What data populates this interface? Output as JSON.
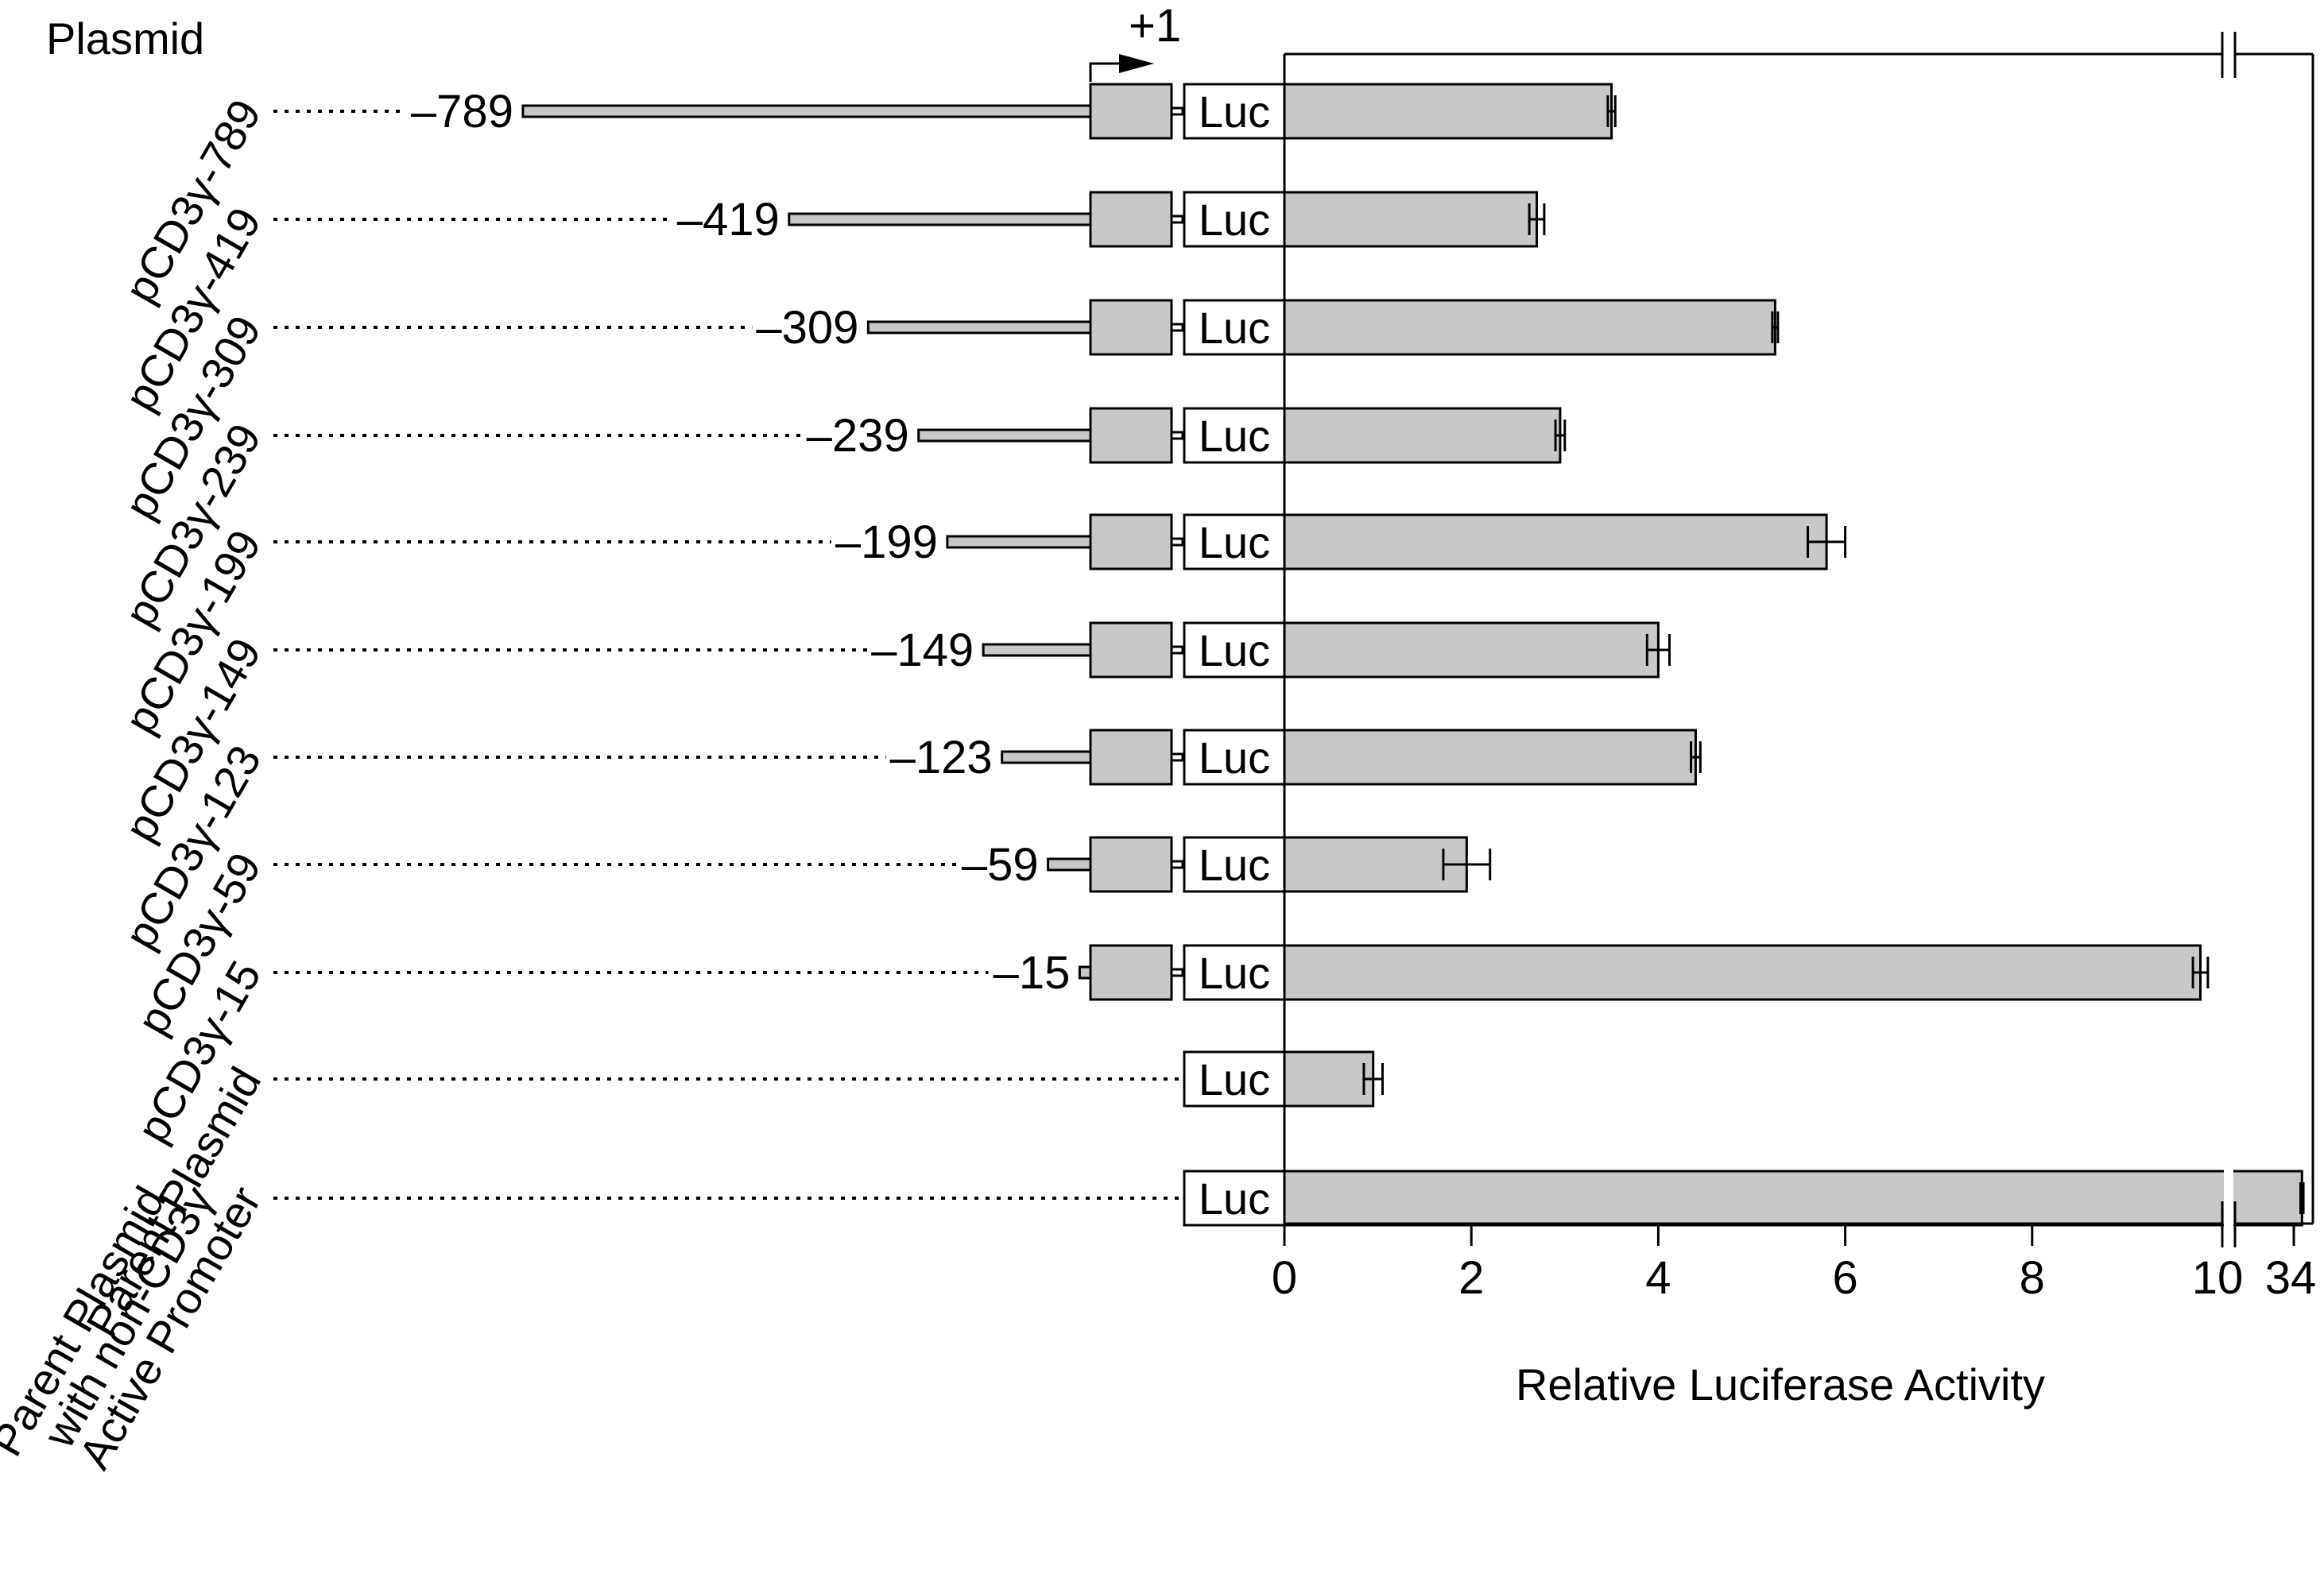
{
  "colors": {
    "bar_fill": "#c8c8c8",
    "stroke": "#000000",
    "background": "#ffffff"
  },
  "header": {
    "plasmid_label": "Plasmid",
    "tss_label": "+1"
  },
  "constructs": [
    {
      "name": "pCD3γ-789",
      "position_label": "–789",
      "start": -789
    },
    {
      "name": "pCD3γ-419",
      "position_label": "–419",
      "start": -419
    },
    {
      "name": "pCD3γ-309",
      "position_label": "–309",
      "start": -309
    },
    {
      "name": "pCD3γ-239",
      "position_label": "–239",
      "start": -239
    },
    {
      "name": "pCD3γ-199",
      "position_label": "–199",
      "start": -199
    },
    {
      "name": "pCD3γ-149",
      "position_label": "–149",
      "start": -149
    },
    {
      "name": "pCD3γ-123",
      "position_label": "–123",
      "start": -123
    },
    {
      "name": "pCD3γ-59",
      "position_label": "–59",
      "start": -59
    },
    {
      "name": "pCD3γ-15",
      "position_label": "–15",
      "start": -15
    },
    {
      "name": "Parent Plasmid",
      "position_label": "",
      "start": null
    },
    {
      "name_lines": [
        "Parent Plasmid",
        "with non-CD3γ",
        "Active Promoter"
      ],
      "position_label": "",
      "start": null
    }
  ],
  "reporter_label": "Luc",
  "chart_data": {
    "type": "bar",
    "orientation": "horizontal",
    "xlabel": "Relative Luciferase Activity",
    "categories": [
      "pCD3γ-789",
      "pCD3γ-419",
      "pCD3γ-309",
      "pCD3γ-239",
      "pCD3γ-199",
      "pCD3γ-149",
      "pCD3γ-123",
      "pCD3γ-59",
      "pCD3γ-15",
      "Parent Plasmid",
      "Parent Plasmid with non-CD3γ Active Promoter"
    ],
    "values": [
      3.5,
      2.7,
      5.25,
      2.95,
      5.8,
      4.0,
      4.4,
      1.95,
      9.8,
      0.95,
      33.8
    ],
    "errors": [
      0.04,
      0.08,
      0.03,
      0.05,
      0.2,
      0.12,
      0.05,
      0.25,
      0.08,
      0.1,
      0.5
    ],
    "xlim": [
      0,
      34
    ],
    "axis_break": [
      10,
      34
    ],
    "xticks": [
      0,
      2,
      4,
      6,
      8,
      10,
      34
    ],
    "xtick_labels": [
      "0",
      "2",
      "4",
      "6",
      "8",
      "10",
      "34"
    ]
  }
}
